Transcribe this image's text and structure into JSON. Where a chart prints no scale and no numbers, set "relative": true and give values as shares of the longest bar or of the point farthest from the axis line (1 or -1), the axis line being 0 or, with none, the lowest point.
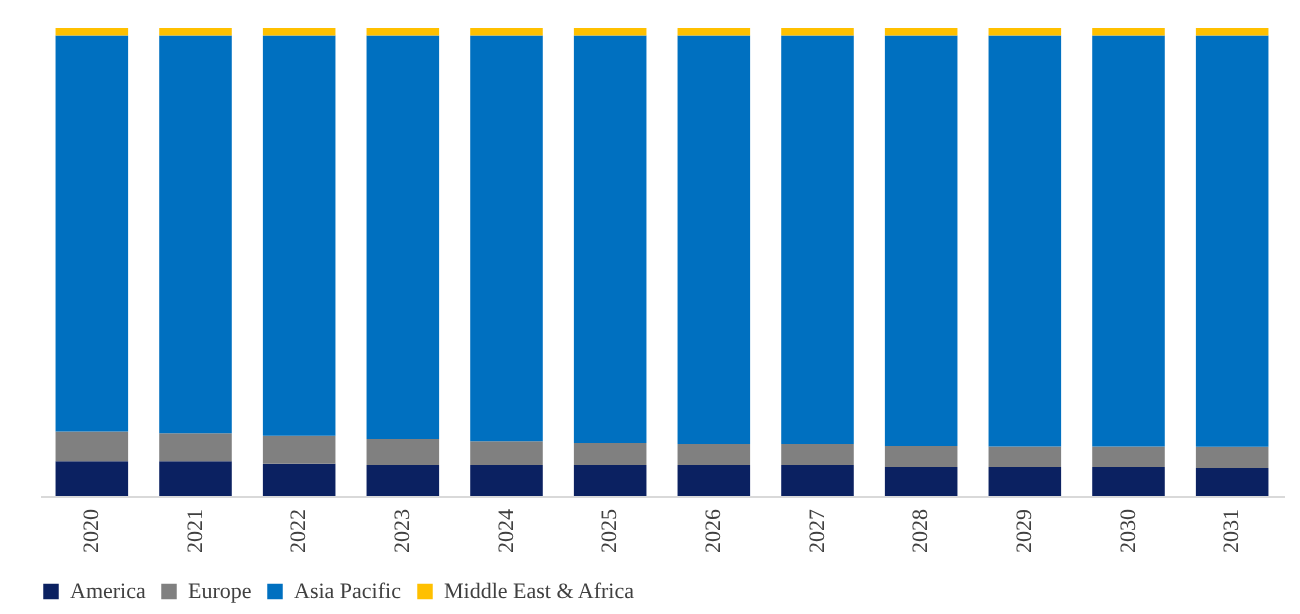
{
  "chart_data": {
    "type": "bar",
    "stacked": true,
    "relative": true,
    "legend": "bottom",
    "grid": false,
    "categories": [
      "2020",
      "2021",
      "2022",
      "2023",
      "2024",
      "2025",
      "2026",
      "2027",
      "2028",
      "2029",
      "2030",
      "2031"
    ],
    "series": [
      {
        "name": "America",
        "color": "#0b2161",
        "values": [
          0.074,
          0.074,
          0.069,
          0.066,
          0.066,
          0.066,
          0.066,
          0.066,
          0.062,
          0.062,
          0.062,
          0.06
        ]
      },
      {
        "name": "Europe",
        "color": "#808080",
        "values": [
          0.064,
          0.06,
          0.06,
          0.056,
          0.051,
          0.047,
          0.045,
          0.045,
          0.045,
          0.044,
          0.044,
          0.045
        ]
      },
      {
        "name": "Asia Pacific",
        "color": "#0070c0",
        "values": [
          0.846,
          0.85,
          0.855,
          0.862,
          0.867,
          0.871,
          0.873,
          0.873,
          0.877,
          0.878,
          0.878,
          0.879
        ]
      },
      {
        "name": "Middle East & Africa",
        "color": "#ffc000",
        "values": [
          0.016,
          0.016,
          0.016,
          0.016,
          0.016,
          0.016,
          0.016,
          0.016,
          0.016,
          0.016,
          0.016,
          0.016
        ]
      }
    ]
  }
}
